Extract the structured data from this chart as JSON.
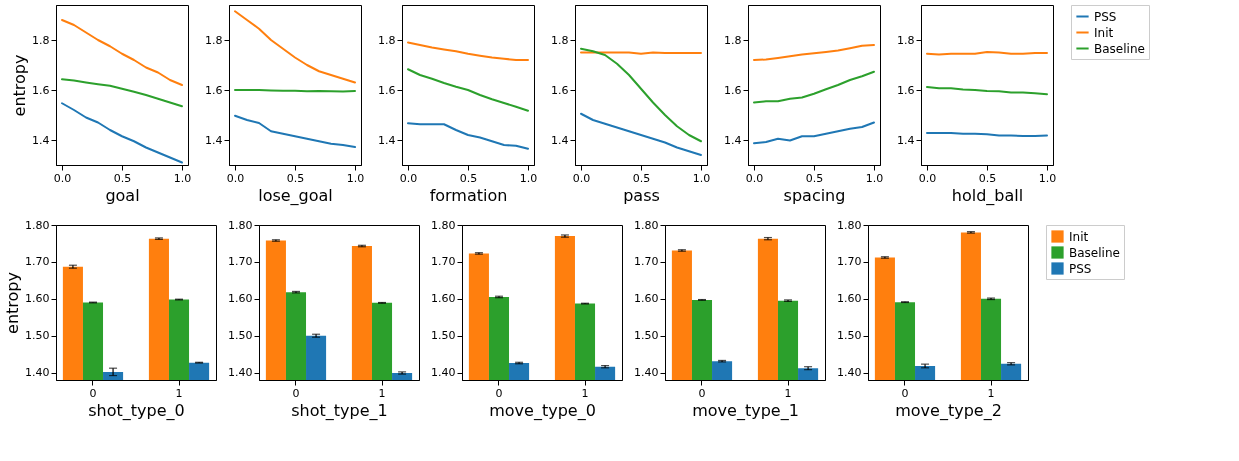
{
  "chart_data": [
    {
      "type": "line",
      "xlabel": "goal",
      "ylabel": "entropy",
      "x": [
        0,
        0.1,
        0.2,
        0.3,
        0.4,
        0.5,
        0.6,
        0.7,
        0.8,
        0.9,
        1
      ],
      "xlim": [
        -0.05,
        1.05
      ],
      "xticks": [
        {
          "value": 0,
          "label": "0.0"
        },
        {
          "value": 0.5,
          "label": "0.5"
        },
        {
          "value": 1,
          "label": "1.0"
        }
      ],
      "ylim": [
        1.3,
        1.94
      ],
      "yticks": [
        1.4,
        1.6,
        1.8
      ],
      "series": [
        {
          "color": "#1f77b4",
          "values": [
            1.547,
            1.52,
            1.49,
            1.47,
            1.44,
            1.415,
            1.395,
            1.37,
            1.35,
            1.33,
            1.31
          ]
        },
        {
          "color": "#ff7f0e",
          "values": [
            1.88,
            1.86,
            1.83,
            1.8,
            1.775,
            1.745,
            1.72,
            1.69,
            1.67,
            1.64,
            1.62
          ]
        },
        {
          "color": "#2ca02c",
          "values": [
            1.643,
            1.638,
            1.63,
            1.623,
            1.617,
            1.605,
            1.593,
            1.58,
            1.565,
            1.55,
            1.535
          ]
        }
      ]
    },
    {
      "type": "line",
      "xlabel": "lose_goal",
      "x": [
        0,
        0.1,
        0.2,
        0.3,
        0.4,
        0.5,
        0.6,
        0.7,
        0.8,
        0.9,
        1
      ],
      "xlim": [
        -0.05,
        1.05
      ],
      "xticks": [
        {
          "value": 0,
          "label": "0.0"
        },
        {
          "value": 0.5,
          "label": "0.5"
        },
        {
          "value": 1,
          "label": "1.0"
        }
      ],
      "ylim": [
        1.3,
        1.94
      ],
      "yticks": [
        1.4,
        1.6,
        1.8
      ],
      "series": [
        {
          "color": "#1f77b4",
          "values": [
            1.497,
            1.48,
            1.468,
            1.435,
            1.425,
            1.415,
            1.405,
            1.395,
            1.385,
            1.38,
            1.372
          ]
        },
        {
          "color": "#ff7f0e",
          "values": [
            1.915,
            1.88,
            1.845,
            1.8,
            1.765,
            1.73,
            1.7,
            1.675,
            1.66,
            1.645,
            1.63
          ]
        },
        {
          "color": "#2ca02c",
          "values": [
            1.6,
            1.6,
            1.6,
            1.598,
            1.597,
            1.597,
            1.595,
            1.596,
            1.595,
            1.594,
            1.596
          ]
        }
      ]
    },
    {
      "type": "line",
      "xlabel": "formation",
      "x": [
        0,
        0.1,
        0.2,
        0.3,
        0.4,
        0.5,
        0.6,
        0.7,
        0.8,
        0.9,
        1
      ],
      "xlim": [
        -0.05,
        1.05
      ],
      "xticks": [
        {
          "value": 0,
          "label": "0.0"
        },
        {
          "value": 0.5,
          "label": "0.5"
        },
        {
          "value": 1,
          "label": "1.0"
        }
      ],
      "ylim": [
        1.3,
        1.94
      ],
      "yticks": [
        1.4,
        1.6,
        1.8
      ],
      "series": [
        {
          "color": "#1f77b4",
          "values": [
            1.467,
            1.463,
            1.463,
            1.463,
            1.44,
            1.42,
            1.41,
            1.395,
            1.38,
            1.377,
            1.365
          ]
        },
        {
          "color": "#ff7f0e",
          "values": [
            1.79,
            1.78,
            1.77,
            1.762,
            1.755,
            1.745,
            1.737,
            1.73,
            1.725,
            1.72,
            1.72
          ]
        },
        {
          "color": "#2ca02c",
          "values": [
            1.683,
            1.66,
            1.645,
            1.628,
            1.613,
            1.6,
            1.58,
            1.563,
            1.548,
            1.533,
            1.517
          ]
        }
      ]
    },
    {
      "type": "line",
      "xlabel": "pass",
      "x": [
        0,
        0.1,
        0.2,
        0.3,
        0.4,
        0.5,
        0.6,
        0.7,
        0.8,
        0.9,
        1
      ],
      "xlim": [
        -0.05,
        1.05
      ],
      "xticks": [
        {
          "value": 0,
          "label": "0.0"
        },
        {
          "value": 0.5,
          "label": "0.5"
        },
        {
          "value": 1,
          "label": "1.0"
        }
      ],
      "ylim": [
        1.3,
        1.94
      ],
      "yticks": [
        1.4,
        1.6,
        1.8
      ],
      "series": [
        {
          "color": "#1f77b4",
          "values": [
            1.505,
            1.48,
            1.465,
            1.45,
            1.435,
            1.42,
            1.405,
            1.39,
            1.37,
            1.355,
            1.34
          ]
        },
        {
          "color": "#ff7f0e",
          "values": [
            1.75,
            1.75,
            1.75,
            1.75,
            1.75,
            1.745,
            1.75,
            1.748,
            1.748,
            1.748,
            1.748
          ]
        },
        {
          "color": "#2ca02c",
          "values": [
            1.765,
            1.755,
            1.74,
            1.705,
            1.66,
            1.605,
            1.55,
            1.5,
            1.455,
            1.42,
            1.395
          ]
        }
      ]
    },
    {
      "type": "line",
      "xlabel": "spacing",
      "x": [
        0,
        0.1,
        0.2,
        0.3,
        0.4,
        0.5,
        0.6,
        0.7,
        0.8,
        0.9,
        1
      ],
      "xlim": [
        -0.05,
        1.05
      ],
      "xticks": [
        {
          "value": 0,
          "label": "0.0"
        },
        {
          "value": 0.5,
          "label": "0.5"
        },
        {
          "value": 1,
          "label": "1.0"
        }
      ],
      "ylim": [
        1.3,
        1.94
      ],
      "yticks": [
        1.4,
        1.6,
        1.8
      ],
      "series": [
        {
          "color": "#1f77b4",
          "values": [
            1.387,
            1.392,
            1.405,
            1.398,
            1.415,
            1.415,
            1.425,
            1.435,
            1.445,
            1.452,
            1.47
          ]
        },
        {
          "color": "#ff7f0e",
          "values": [
            1.72,
            1.722,
            1.728,
            1.735,
            1.742,
            1.747,
            1.752,
            1.758,
            1.767,
            1.777,
            1.78
          ]
        },
        {
          "color": "#2ca02c",
          "values": [
            1.55,
            1.555,
            1.555,
            1.565,
            1.57,
            1.585,
            1.603,
            1.62,
            1.64,
            1.655,
            1.673
          ]
        }
      ]
    },
    {
      "type": "line",
      "xlabel": "hold_ball",
      "x": [
        0,
        0.1,
        0.2,
        0.3,
        0.4,
        0.5,
        0.6,
        0.7,
        0.8,
        0.9,
        1
      ],
      "xlim": [
        -0.05,
        1.05
      ],
      "xticks": [
        {
          "value": 0,
          "label": "0.0"
        },
        {
          "value": 0.5,
          "label": "0.5"
        },
        {
          "value": 1,
          "label": "1.0"
        }
      ],
      "ylim": [
        1.3,
        1.94
      ],
      "yticks": [
        1.4,
        1.6,
        1.8
      ],
      "legend": "right",
      "series": [
        {
          "name": "PSS",
          "color": "#1f77b4",
          "values": [
            1.428,
            1.428,
            1.428,
            1.425,
            1.425,
            1.423,
            1.418,
            1.418,
            1.416,
            1.416,
            1.418
          ]
        },
        {
          "name": "Init",
          "color": "#ff7f0e",
          "values": [
            1.745,
            1.742,
            1.745,
            1.745,
            1.745,
            1.752,
            1.75,
            1.745,
            1.745,
            1.748,
            1.748
          ]
        },
        {
          "name": "Baseline",
          "color": "#2ca02c",
          "values": [
            1.612,
            1.607,
            1.607,
            1.602,
            1.6,
            1.596,
            1.595,
            1.59,
            1.59,
            1.587,
            1.583
          ]
        }
      ]
    },
    {
      "type": "bar",
      "xlabel": "shot_type_0",
      "ylabel": "entropy",
      "categories": [
        "0",
        "1"
      ],
      "ylim": [
        1.38,
        1.8
      ],
      "yticks": [
        {
          "value": 1.4,
          "label": "1.40"
        },
        {
          "value": 1.5,
          "label": "1.50"
        },
        {
          "value": 1.6,
          "label": "1.60"
        },
        {
          "value": 1.7,
          "label": "1.70"
        },
        {
          "value": 1.8,
          "label": "1.80"
        }
      ],
      "series": [
        {
          "color": "#ff7f0e",
          "values": [
            1.687,
            1.763
          ],
          "errors": [
            0.004,
            0.002
          ]
        },
        {
          "color": "#2ca02c",
          "values": [
            1.59,
            1.598
          ],
          "errors": [
            0.001,
            0.001
          ]
        },
        {
          "color": "#1f77b4",
          "values": [
            1.402,
            1.427
          ],
          "errors": [
            0.01,
            0.001
          ]
        }
      ]
    },
    {
      "type": "bar",
      "xlabel": "shot_type_1",
      "categories": [
        "0",
        "1"
      ],
      "ylim": [
        1.38,
        1.8
      ],
      "yticks": [
        {
          "value": 1.4,
          "label": "1.40"
        },
        {
          "value": 1.5,
          "label": "1.50"
        },
        {
          "value": 1.6,
          "label": "1.60"
        },
        {
          "value": 1.7,
          "label": "1.70"
        },
        {
          "value": 1.8,
          "label": "1.80"
        }
      ],
      "series": [
        {
          "color": "#ff7f0e",
          "values": [
            1.758,
            1.743
          ],
          "errors": [
            0.002,
            0.002
          ]
        },
        {
          "color": "#2ca02c",
          "values": [
            1.618,
            1.589
          ],
          "errors": [
            0.002,
            0.001
          ]
        },
        {
          "color": "#1f77b4",
          "values": [
            1.5,
            1.399
          ],
          "errors": [
            0.004,
            0.003
          ]
        }
      ]
    },
    {
      "type": "bar",
      "xlabel": "move_type_0",
      "categories": [
        "0",
        "1"
      ],
      "ylim": [
        1.38,
        1.8
      ],
      "yticks": [
        {
          "value": 1.4,
          "label": "1.40"
        },
        {
          "value": 1.5,
          "label": "1.50"
        },
        {
          "value": 1.6,
          "label": "1.60"
        },
        {
          "value": 1.7,
          "label": "1.70"
        },
        {
          "value": 1.8,
          "label": "1.80"
        }
      ],
      "series": [
        {
          "color": "#ff7f0e",
          "values": [
            1.723,
            1.77
          ],
          "errors": [
            0.002,
            0.003
          ]
        },
        {
          "color": "#2ca02c",
          "values": [
            1.605,
            1.587
          ],
          "errors": [
            0.002,
            0.001
          ]
        },
        {
          "color": "#1f77b4",
          "values": [
            1.426,
            1.416
          ],
          "errors": [
            0.002,
            0.003
          ]
        }
      ]
    },
    {
      "type": "bar",
      "xlabel": "move_type_1",
      "categories": [
        "0",
        "1"
      ],
      "ylim": [
        1.38,
        1.8
      ],
      "yticks": [
        {
          "value": 1.4,
          "label": "1.40"
        },
        {
          "value": 1.5,
          "label": "1.50"
        },
        {
          "value": 1.6,
          "label": "1.60"
        },
        {
          "value": 1.7,
          "label": "1.70"
        },
        {
          "value": 1.8,
          "label": "1.80"
        }
      ],
      "series": [
        {
          "color": "#ff7f0e",
          "values": [
            1.731,
            1.763
          ],
          "errors": [
            0.002,
            0.003
          ]
        },
        {
          "color": "#2ca02c",
          "values": [
            1.597,
            1.595
          ],
          "errors": [
            0.001,
            0.002
          ]
        },
        {
          "color": "#1f77b4",
          "values": [
            1.431,
            1.412
          ],
          "errors": [
            0.002,
            0.004
          ]
        }
      ]
    },
    {
      "type": "bar",
      "xlabel": "move_type_2",
      "categories": [
        "0",
        "1"
      ],
      "ylim": [
        1.38,
        1.8
      ],
      "yticks": [
        {
          "value": 1.4,
          "label": "1.40"
        },
        {
          "value": 1.5,
          "label": "1.50"
        },
        {
          "value": 1.6,
          "label": "1.60"
        },
        {
          "value": 1.7,
          "label": "1.70"
        },
        {
          "value": 1.8,
          "label": "1.80"
        }
      ],
      "legend": "right",
      "series": [
        {
          "name": "Init",
          "color": "#ff7f0e",
          "values": [
            1.712,
            1.78
          ],
          "errors": [
            0.002,
            0.002
          ]
        },
        {
          "name": "Baseline",
          "color": "#2ca02c",
          "values": [
            1.591,
            1.6
          ],
          "errors": [
            0.001,
            0.002
          ]
        },
        {
          "name": "PSS",
          "color": "#1f77b4",
          "values": [
            1.418,
            1.424
          ],
          "errors": [
            0.005,
            0.003
          ]
        }
      ]
    }
  ]
}
